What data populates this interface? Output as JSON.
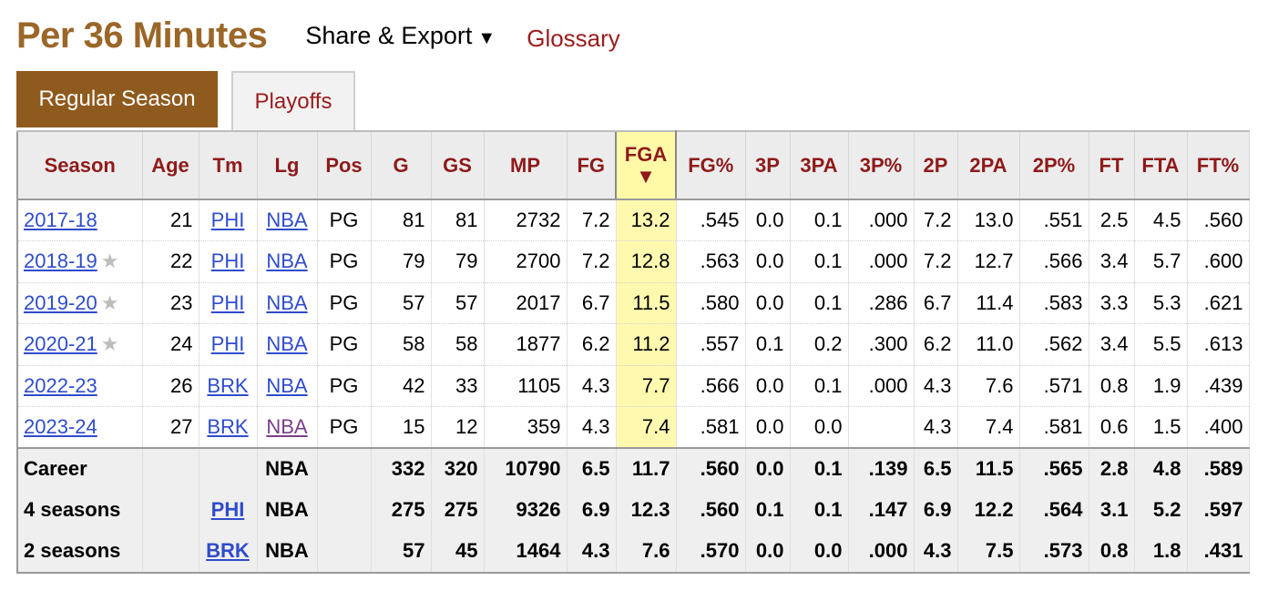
{
  "header": {
    "title": "Per 36 Minutes",
    "share_label": "Share & Export",
    "share_arrow": "▼",
    "glossary_label": "Glossary"
  },
  "tabs": [
    {
      "label": "Regular Season",
      "active": true
    },
    {
      "label": "Playoffs",
      "active": false
    }
  ],
  "table": {
    "sorted_column": "FGA",
    "sort_arrow": "▼",
    "columns": [
      "Season",
      "Age",
      "Tm",
      "Lg",
      "Pos",
      "G",
      "GS",
      "MP",
      "FG",
      "FGA",
      "FG%",
      "3P",
      "3PA",
      "3P%",
      "2P",
      "2PA",
      "2P%",
      "FT",
      "FTA",
      "FT%"
    ],
    "rows": [
      {
        "season": "2017-18",
        "star": false,
        "age": "21",
        "tm": "PHI",
        "lg": "NBA",
        "lg_visited": false,
        "pos": "PG",
        "g": "81",
        "gs": "81",
        "mp": "2732",
        "fg": "7.2",
        "fga": "13.2",
        "fgp": ".545",
        "tp": "0.0",
        "tpa": "0.1",
        "tpp": ".000",
        "twop": "7.2",
        "twopa": "13.0",
        "twopp": ".551",
        "ft": "2.5",
        "fta": "4.5",
        "ftp": ".560"
      },
      {
        "season": "2018-19",
        "star": true,
        "age": "22",
        "tm": "PHI",
        "lg": "NBA",
        "lg_visited": false,
        "pos": "PG",
        "g": "79",
        "gs": "79",
        "mp": "2700",
        "fg": "7.2",
        "fga": "12.8",
        "fgp": ".563",
        "tp": "0.0",
        "tpa": "0.1",
        "tpp": ".000",
        "twop": "7.2",
        "twopa": "12.7",
        "twopp": ".566",
        "ft": "3.4",
        "fta": "5.7",
        "ftp": ".600"
      },
      {
        "season": "2019-20",
        "star": true,
        "age": "23",
        "tm": "PHI",
        "lg": "NBA",
        "lg_visited": false,
        "pos": "PG",
        "g": "57",
        "gs": "57",
        "mp": "2017",
        "fg": "6.7",
        "fga": "11.5",
        "fgp": ".580",
        "tp": "0.0",
        "tpa": "0.1",
        "tpp": ".286",
        "twop": "6.7",
        "twopa": "11.4",
        "twopp": ".583",
        "ft": "3.3",
        "fta": "5.3",
        "ftp": ".621"
      },
      {
        "season": "2020-21",
        "star": true,
        "age": "24",
        "tm": "PHI",
        "lg": "NBA",
        "lg_visited": false,
        "pos": "PG",
        "g": "58",
        "gs": "58",
        "mp": "1877",
        "fg": "6.2",
        "fga": "11.2",
        "fgp": ".557",
        "tp": "0.1",
        "tpa": "0.2",
        "tpp": ".300",
        "twop": "6.2",
        "twopa": "11.0",
        "twopp": ".562",
        "ft": "3.4",
        "fta": "5.5",
        "ftp": ".613"
      },
      {
        "season": "2022-23",
        "star": false,
        "age": "26",
        "tm": "BRK",
        "lg": "NBA",
        "lg_visited": false,
        "pos": "PG",
        "g": "42",
        "gs": "33",
        "mp": "1105",
        "fg": "4.3",
        "fga": "7.7",
        "fgp": ".566",
        "tp": "0.0",
        "tpa": "0.1",
        "tpp": ".000",
        "twop": "4.3",
        "twopa": "7.6",
        "twopp": ".571",
        "ft": "0.8",
        "fta": "1.9",
        "ftp": ".439"
      },
      {
        "season": "2023-24",
        "star": false,
        "age": "27",
        "tm": "BRK",
        "lg": "NBA",
        "lg_visited": true,
        "pos": "PG",
        "g": "15",
        "gs": "12",
        "mp": "359",
        "fg": "4.3",
        "fga": "7.4",
        "fgp": ".581",
        "tp": "0.0",
        "tpa": "0.0",
        "tpp": "",
        "twop": "4.3",
        "twopa": "7.4",
        "twopp": ".581",
        "ft": "0.6",
        "fta": "1.5",
        "ftp": ".400"
      }
    ],
    "summary": [
      {
        "season": "Career",
        "tm": "",
        "lg": "NBA",
        "g": "332",
        "gs": "320",
        "mp": "10790",
        "fg": "6.5",
        "fga": "11.7",
        "fgp": ".560",
        "tp": "0.0",
        "tpa": "0.1",
        "tpp": ".139",
        "twop": "6.5",
        "twopa": "11.5",
        "twopp": ".565",
        "ft": "2.8",
        "fta": "4.8",
        "ftp": ".589"
      },
      {
        "season": "4 seasons",
        "tm": "PHI",
        "lg": "NBA",
        "g": "275",
        "gs": "275",
        "mp": "9326",
        "fg": "6.9",
        "fga": "12.3",
        "fgp": ".560",
        "tp": "0.1",
        "tpa": "0.1",
        "tpp": ".147",
        "twop": "6.9",
        "twopa": "12.2",
        "twopp": ".564",
        "ft": "3.1",
        "fta": "5.2",
        "ftp": ".597"
      },
      {
        "season": "2 seasons",
        "tm": "BRK",
        "lg": "NBA",
        "g": "57",
        "gs": "45",
        "mp": "1464",
        "fg": "4.3",
        "fga": "7.6",
        "fgp": ".570",
        "tp": "0.0",
        "tpa": "0.0",
        "tpp": ".000",
        "twop": "4.3",
        "twopa": "7.5",
        "twopp": ".573",
        "ft": "0.8",
        "fta": "1.8",
        "ftp": ".431"
      }
    ]
  },
  "icons": {
    "star": "star-icon",
    "sort": "sort-desc-icon",
    "dropdown": "chevron-down-icon"
  }
}
